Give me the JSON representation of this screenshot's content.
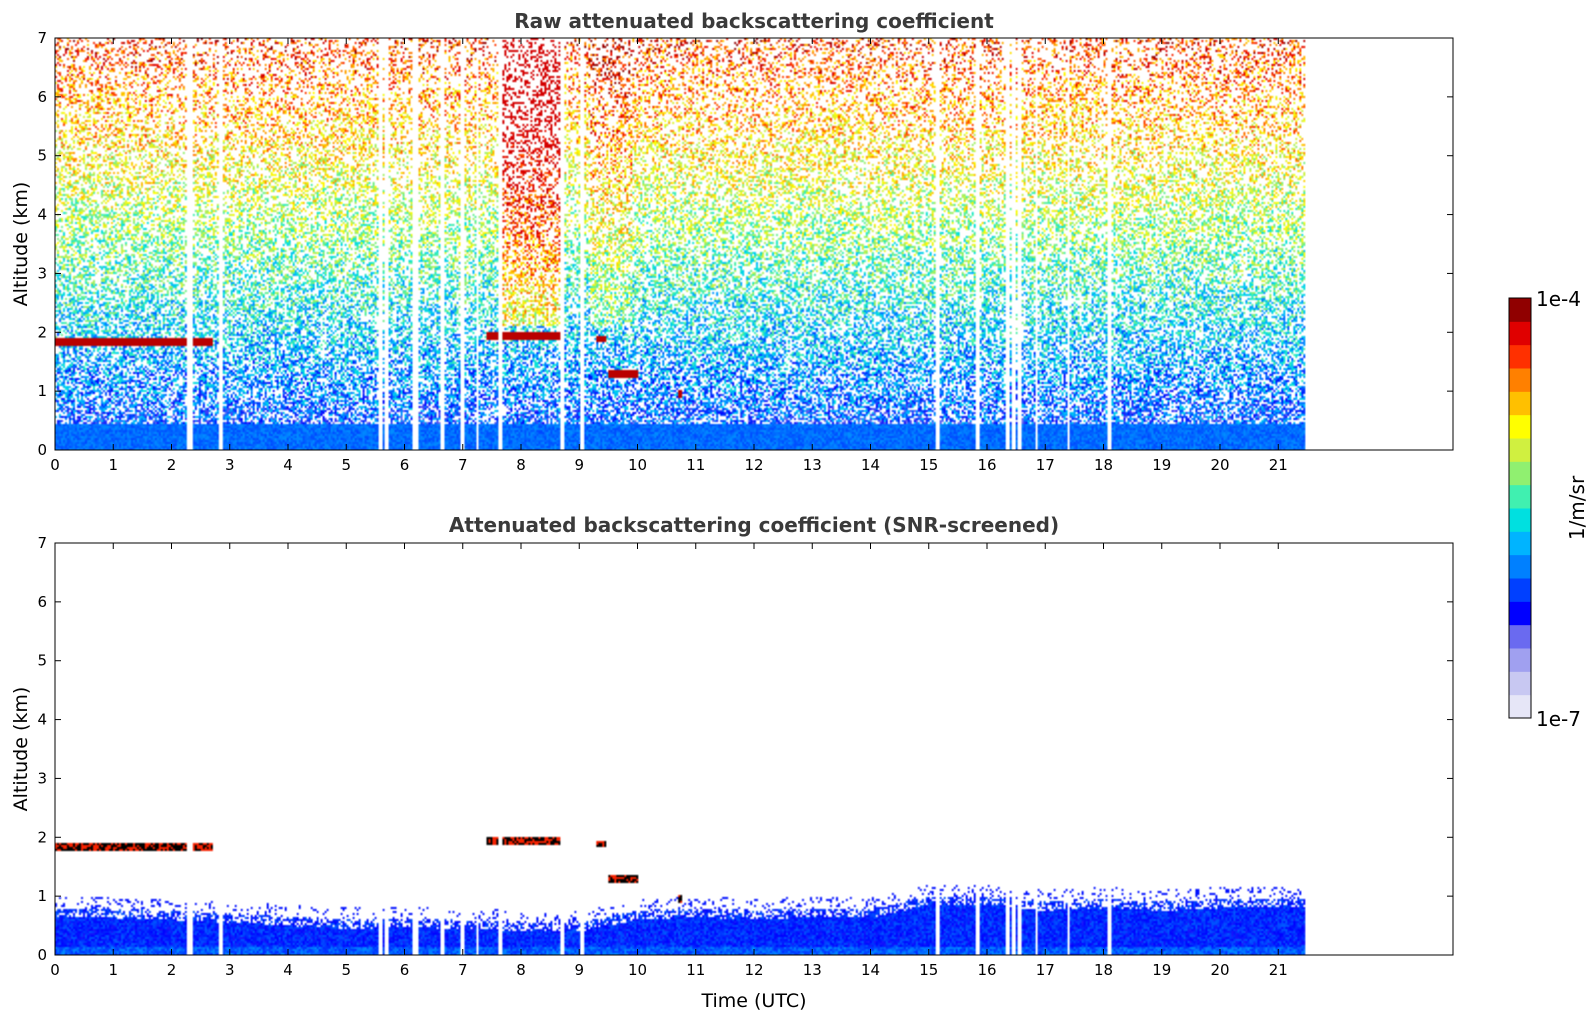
{
  "chart_data": [
    {
      "type": "heatmap",
      "title": "Raw attenuated backscattering coefficient",
      "xlabel": "",
      "ylabel": "Altitude (km)",
      "xlim": [
        0,
        24
      ],
      "ylim": [
        0,
        7
      ],
      "xticks": [
        0,
        1,
        2,
        3,
        4,
        5,
        6,
        7,
        8,
        9,
        10,
        11,
        12,
        13,
        14,
        15,
        16,
        17,
        18,
        19,
        20,
        21
      ],
      "yticks": [
        0,
        1,
        2,
        3,
        4,
        5,
        6,
        7
      ],
      "data_end_time": 21.45,
      "gaps_utc": [
        2.3,
        2.35,
        2.85,
        5.6,
        5.7,
        6.15,
        6.2,
        6.65,
        7.0,
        7.25,
        7.65,
        8.7,
        9.05,
        15.15,
        15.85,
        16.35,
        16.45,
        16.55,
        16.85,
        17.4,
        18.1
      ],
      "features": [
        {
          "name": "cloud layer",
          "t_start": 0.0,
          "t_end": 2.7,
          "altitude_km": 1.83,
          "level": "high"
        },
        {
          "name": "cloud layer",
          "t_start": 7.4,
          "t_end": 8.7,
          "altitude_km": 1.93,
          "level": "high"
        },
        {
          "name": "patch",
          "t_start": 9.3,
          "t_end": 9.45,
          "altitude_km": 1.88,
          "level": "high"
        },
        {
          "name": "patch",
          "t_start": 9.5,
          "t_end": 10.0,
          "altitude_km": 1.3,
          "level": "high"
        },
        {
          "name": "patch",
          "t_start": 10.7,
          "t_end": 10.75,
          "altitude_km": 0.95,
          "level": "high"
        }
      ]
    },
    {
      "type": "heatmap",
      "title": "Attenuated backscattering coefficient (SNR-screened)",
      "xlabel": "Time (UTC)",
      "ylabel": "Altitude (km)",
      "xlim": [
        0,
        24
      ],
      "ylim": [
        0,
        7
      ],
      "xticks": [
        0,
        1,
        2,
        3,
        4,
        5,
        6,
        7,
        8,
        9,
        10,
        11,
        12,
        13,
        14,
        15,
        16,
        17,
        18,
        19,
        20,
        21
      ],
      "yticks": [
        0,
        1,
        2,
        3,
        4,
        5,
        6,
        7
      ],
      "data_end_time": 21.45,
      "boundary_layer_top_km": [
        [
          0,
          0.8
        ],
        [
          1,
          0.78
        ],
        [
          2,
          0.75
        ],
        [
          3,
          0.7
        ],
        [
          4,
          0.65
        ],
        [
          5,
          0.6
        ],
        [
          6,
          0.62
        ],
        [
          7,
          0.6
        ],
        [
          8,
          0.55
        ],
        [
          9,
          0.55
        ],
        [
          10,
          0.75
        ],
        [
          11,
          0.8
        ],
        [
          12,
          0.75
        ],
        [
          13,
          0.8
        ],
        [
          14,
          0.78
        ],
        [
          15,
          1.0
        ],
        [
          16,
          1.0
        ],
        [
          17,
          0.9
        ],
        [
          18,
          0.95
        ],
        [
          19,
          0.9
        ],
        [
          20,
          0.95
        ],
        [
          21,
          0.95
        ]
      ]
    }
  ],
  "colorbar": {
    "max_label": "1e-4",
    "min_label": "1e-7",
    "unit_label": "1/m/sr",
    "colors": [
      "#e6e6f7",
      "#c8c8f2",
      "#a0a0f0",
      "#6a6af0",
      "#0000ff",
      "#0040ff",
      "#0080ff",
      "#00b4ff",
      "#00e0e0",
      "#40f0b0",
      "#90f070",
      "#d0f040",
      "#ffff00",
      "#ffc000",
      "#ff8000",
      "#ff3000",
      "#e00000",
      "#900000"
    ]
  }
}
